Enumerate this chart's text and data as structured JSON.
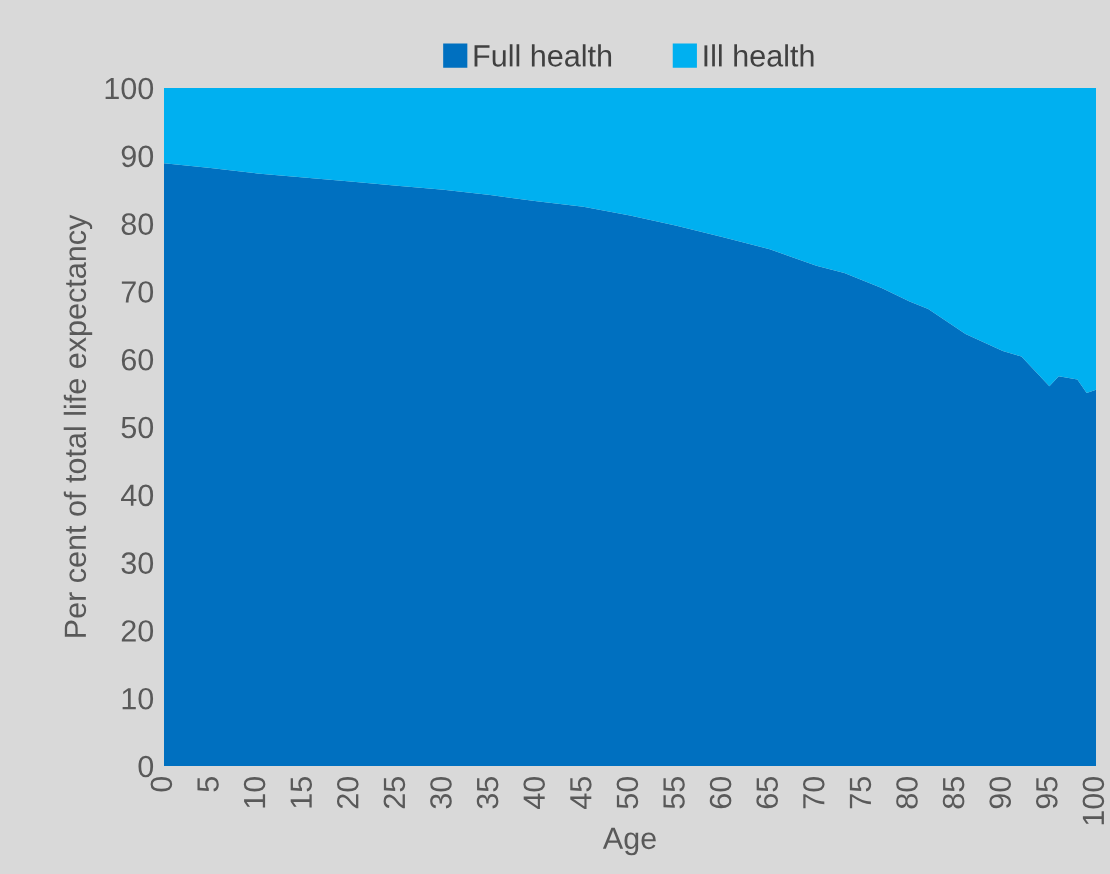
{
  "chart_data": {
    "type": "area",
    "stacked": true,
    "xlabel": "Age",
    "ylabel": "Per cent of total life expectancy",
    "x": [
      0,
      5,
      10,
      15,
      20,
      25,
      30,
      35,
      40,
      45,
      50,
      55,
      60,
      65,
      70,
      73,
      77,
      80,
      82,
      86,
      90,
      92,
      95,
      96,
      98,
      99,
      100
    ],
    "series": [
      {
        "name": "Full health",
        "color": "#0070c0",
        "values": [
          88.9,
          88.2,
          87.4,
          86.8,
          86.2,
          85.6,
          85.0,
          84.2,
          83.3,
          82.5,
          81.2,
          79.7,
          78.0,
          76.2,
          73.8,
          72.7,
          70.5,
          68.5,
          67.4,
          63.7,
          61.2,
          60.4,
          56.0,
          57.5,
          57.0,
          55.0,
          55.5
        ]
      },
      {
        "name": "Ill health",
        "color": "#00b0f0",
        "values": [
          11.1,
          11.8,
          12.6,
          13.2,
          13.8,
          14.4,
          15.0,
          15.8,
          16.7,
          17.5,
          18.8,
          20.3,
          22.0,
          23.8,
          26.2,
          27.3,
          29.5,
          31.5,
          32.6,
          36.3,
          38.8,
          39.6,
          44.0,
          42.5,
          43.0,
          45.0,
          44.5
        ]
      }
    ],
    "xlim": [
      0,
      100
    ],
    "xticks": [
      0,
      5,
      10,
      15,
      20,
      25,
      30,
      35,
      40,
      45,
      50,
      55,
      60,
      65,
      70,
      75,
      80,
      85,
      90,
      95,
      100
    ],
    "ylim": [
      0,
      100
    ],
    "yticks": [
      0,
      10,
      20,
      30,
      40,
      50,
      60,
      70,
      80,
      90,
      100
    ],
    "grid": false,
    "legend": "top"
  }
}
